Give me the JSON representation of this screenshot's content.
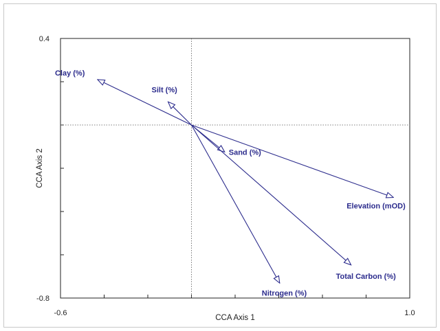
{
  "chart_data": {
    "type": "biplot",
    "xlabel": "CCA Axis 1",
    "ylabel": "CCA Axis 2",
    "xlim": [
      -0.6,
      1.0
    ],
    "ylim": [
      -0.8,
      0.4
    ],
    "x_tick_labels": [
      "-0.6",
      "1.0"
    ],
    "y_tick_labels": [
      "0.4",
      "-0.8"
    ],
    "origin": [
      0.0,
      0.0
    ],
    "color": "#2b2b8c",
    "vectors": [
      {
        "name": "Clay (%)",
        "x": -0.43,
        "y": 0.21
      },
      {
        "name": "Silt (%)",
        "x": -0.107,
        "y": 0.107
      },
      {
        "name": "Sand (%)",
        "x": 0.152,
        "y": -0.125
      },
      {
        "name": "Elevation (mOD)",
        "x": 0.925,
        "y": -0.335
      },
      {
        "name": "Total Carbon (%)",
        "x": 0.731,
        "y": -0.647
      },
      {
        "name": "Nitrogen (%)",
        "x": 0.404,
        "y": -0.731
      }
    ]
  }
}
